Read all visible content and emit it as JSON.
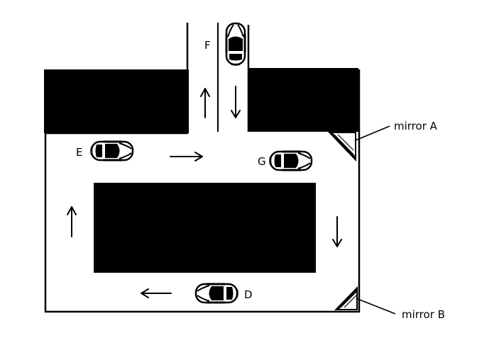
{
  "labels": {
    "car_d": "D",
    "car_e": "E",
    "car_f": "F",
    "car_g": "G",
    "mirror_a": "mirror A",
    "mirror_b": "mirror B"
  },
  "colors": {
    "ink": "#000000",
    "paper": "#ffffff"
  },
  "icons": {
    "car": "car-top-view-icon",
    "arrow": "direction-arrow-icon"
  }
}
